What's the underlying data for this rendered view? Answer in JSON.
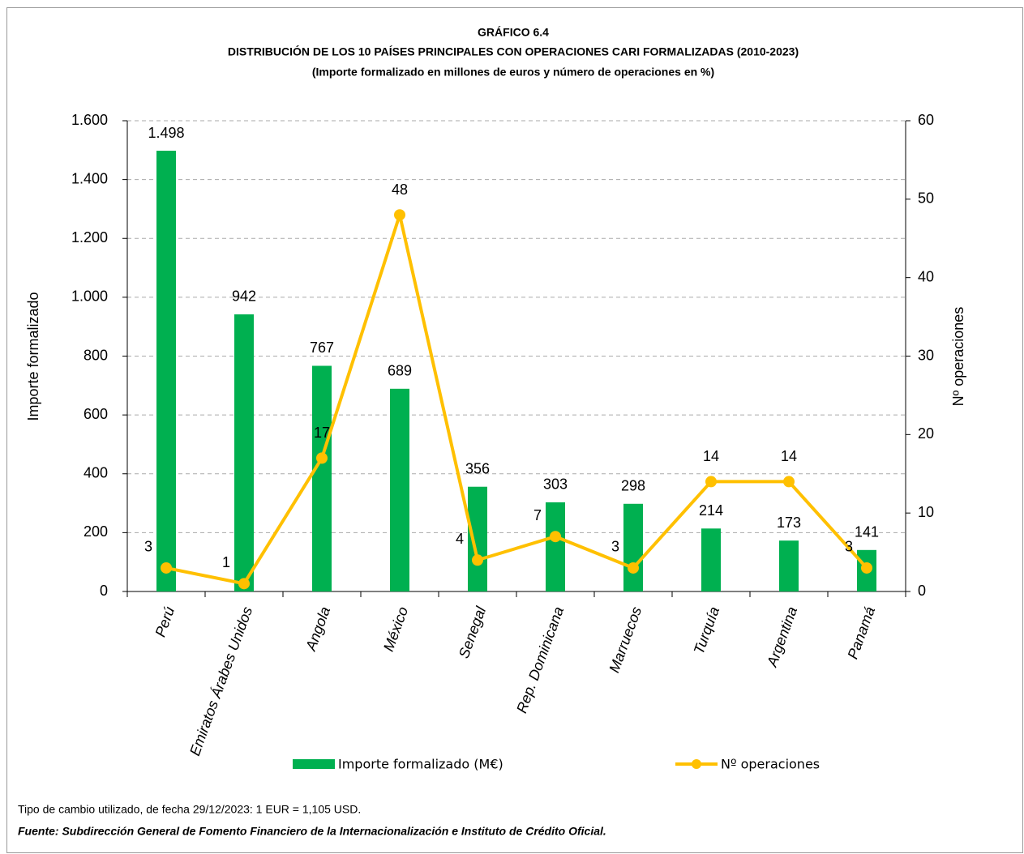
{
  "chart_data": {
    "type": "bar",
    "title": "GRÁFICO 6.4",
    "subtitle": "DISTRIBUCIÓN DE LOS 10 PAÍSES PRINCIPALES CON OPERACIONES CARI FORMALIZADAS (2010-2023)",
    "subtitle_2": "(Importe formalizado en millones de euros y número de operaciones en %)",
    "ylabel": "Importe formalizado",
    "y2label": "Nº operaciones",
    "categories": [
      "Perú",
      "Emiratos Árabes Unidos",
      "Angola",
      "México",
      "Senegal",
      "Rep. Dominicana",
      "Marruecos",
      "Turquía",
      "Argentina",
      "Panamá"
    ],
    "series": [
      {
        "name": "Importe formalizado (M€)",
        "type": "bar",
        "color": "#00b050",
        "values": [
          1498,
          942,
          767,
          689,
          356,
          303,
          298,
          214,
          173,
          141
        ],
        "value_labels": [
          "1.498",
          "942",
          "767",
          "689",
          "356",
          "303",
          "298",
          "214",
          "173",
          "141"
        ]
      },
      {
        "name": "Nº operaciones",
        "type": "line",
        "color": "#ffc000",
        "label_color": "#c00000",
        "axis": "y2",
        "values": [
          3,
          1,
          17,
          48,
          4,
          7,
          3,
          14,
          14,
          3
        ]
      }
    ],
    "ylim": [
      0,
      1600
    ],
    "yticks": [
      0,
      200,
      400,
      600,
      800,
      {
        "value": 1000,
        "label": "1.000"
      },
      {
        "value": 1200,
        "label": "1.200"
      },
      {
        "value": 1400,
        "label": "1.400"
      },
      {
        "value": 1600,
        "label": "1.600"
      }
    ],
    "y2lim": [
      0,
      60
    ],
    "y2ticks": [
      0,
      10,
      20,
      30,
      40,
      50,
      60
    ],
    "grid": true,
    "legend": "bottom"
  },
  "footnote": "Tipo de cambio utilizado, de fecha 29/12/2023: 1 EUR = 1,105 USD.",
  "source": "Fuente: Subdirección General de Fomento Financiero de la Internacionalización e Instituto de Crédito Oficial."
}
